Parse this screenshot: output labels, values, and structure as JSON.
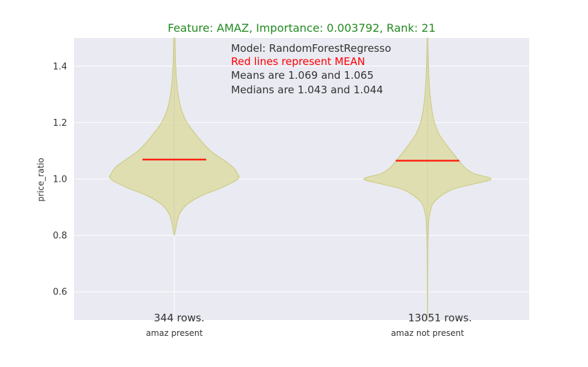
{
  "chart_data": {
    "type": "violin",
    "title": "Feature: AMAZ,    Importance: 0.003792,    Rank: 21",
    "xlabel": "",
    "ylabel": "price_ratio",
    "ylim": [
      0.5,
      1.5
    ],
    "yticks": [
      0.6,
      0.8,
      1.0,
      1.2,
      1.4
    ],
    "ytick_labels": [
      "0.6",
      "0.8",
      "1.0",
      "1.2",
      "1.4"
    ],
    "grid": true,
    "categories": [
      "amaz present",
      "amaz not present"
    ],
    "counts": [
      "344 rows.",
      "13051 rows."
    ],
    "means": [
      1.069,
      1.065
    ],
    "medians": [
      1.043,
      1.044
    ],
    "annotations": [
      "Model: RandomForestRegresso",
      "Red lines represent MEAN",
      "Means are 1.069 and 1.065",
      "Medians are 1.043 and 1.044"
    ],
    "violins": [
      {
        "min": 0.8,
        "max": 1.5,
        "profile": [
          [
            0.8,
            0.002
          ],
          [
            0.82,
            0.02
          ],
          [
            0.85,
            0.045
          ],
          [
            0.88,
            0.09
          ],
          [
            0.91,
            0.2
          ],
          [
            0.94,
            0.42
          ],
          [
            0.97,
            0.75
          ],
          [
            1.0,
            1.0
          ],
          [
            1.02,
            0.99
          ],
          [
            1.04,
            0.93
          ],
          [
            1.06,
            0.82
          ],
          [
            1.08,
            0.69
          ],
          [
            1.1,
            0.57
          ],
          [
            1.13,
            0.44
          ],
          [
            1.16,
            0.33
          ],
          [
            1.2,
            0.2
          ],
          [
            1.24,
            0.12
          ],
          [
            1.28,
            0.075
          ],
          [
            1.32,
            0.048
          ],
          [
            1.36,
            0.032
          ],
          [
            1.4,
            0.022
          ],
          [
            1.45,
            0.014
          ],
          [
            1.5,
            0.01
          ]
        ]
      },
      {
        "min": 0.5,
        "max": 1.5,
        "profile": [
          [
            0.5,
            0.003
          ],
          [
            0.6,
            0.004
          ],
          [
            0.7,
            0.006
          ],
          [
            0.78,
            0.009
          ],
          [
            0.85,
            0.02
          ],
          [
            0.88,
            0.04
          ],
          [
            0.92,
            0.11
          ],
          [
            0.96,
            0.36
          ],
          [
            0.98,
            0.68
          ],
          [
            1.0,
            1.0
          ],
          [
            1.02,
            0.72
          ],
          [
            1.04,
            0.59
          ],
          [
            1.06,
            0.51
          ],
          [
            1.08,
            0.44
          ],
          [
            1.1,
            0.37
          ],
          [
            1.13,
            0.27
          ],
          [
            1.16,
            0.18
          ],
          [
            1.2,
            0.11
          ],
          [
            1.25,
            0.065
          ],
          [
            1.3,
            0.04
          ],
          [
            1.35,
            0.025
          ],
          [
            1.4,
            0.016
          ],
          [
            1.45,
            0.01
          ],
          [
            1.5,
            0.007
          ]
        ]
      }
    ],
    "colors": {
      "background": "#eaeaf2",
      "grid": "#ffffff",
      "violin_fill": "#dada9b",
      "violin_edge": "#c8c87a",
      "mean_line": "#ff2010",
      "title": "#228B22",
      "red_text": "#ff0000"
    }
  }
}
